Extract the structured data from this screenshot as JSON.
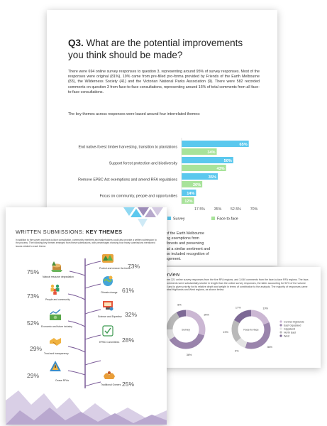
{
  "q3": {
    "heading_num": "Q3.",
    "heading_text": " What are the potential improvements you think should be made?",
    "para1": "There were 694 online survey responses to question 3, representing around 95% of survey responses. Most of the responses were original (81%), 19% came from pre-filled pro-forma provided by Friends of the Earth Melbourne (83), the Wilderness Society (41) and the Victorian National Parks Association (9). There were 582 recorded comments on question 3 from face-to-face consultations, representing around 16% of total comments from all face-to-face consultations.",
    "para2": "The key themes across responses were based around four interrelated themes:",
    "behind_text": [
      "ess Society and Friends of the Earth Melbourne",
      "er harvesting and removing exemptions from",
      "on enabling multiple-use forests and preserving",
      "change impacts. VNPA had a similar sentiment and",
      "ation based only. They also included recognition of",
      "joint ownership and management."
    ]
  },
  "chart_data": {
    "type": "bar",
    "categories": [
      "End native-forest timber harvesting, transition to plantations",
      "Support forest protection and biodiversity",
      "Remove EPBC Act exemptions and amend RFA regulations",
      "Focus on community, people and opportunities"
    ],
    "series": [
      {
        "name": "Survey",
        "values": [
          65,
          50,
          35,
          14
        ]
      },
      {
        "name": "Face-to-face",
        "values": [
          34,
          43,
          20,
          12
        ]
      }
    ],
    "value_labels": {
      "Survey": [
        "65%",
        "50%",
        "35%",
        "14%"
      ],
      "Face-to-face": [
        "34%",
        "43%",
        "20%",
        "12%"
      ]
    },
    "xticks": [
      "17.5%",
      "35%",
      "52.5%",
      "70%"
    ],
    "xlim": [
      0,
      70
    ],
    "legend_position": "bottom",
    "colors": {
      "Survey": "#5bc8ee",
      "Face-to-face": "#a8e39a"
    }
  },
  "written": {
    "title_regular": "WRITTEN SUBMISSIONS: ",
    "title_bold": "KEY THEMES",
    "intro": "In addition to the survey and face-to-face consultation, community members and stakeholders could also provide a written submission to the process. The following key themes emerged from these submissions, with percentages showing how many submissions mentioned issues related to each theme:",
    "left": [
      {
        "pct": "75%",
        "label": "Natural resource degradation",
        "icon": "tree-stump-icon"
      },
      {
        "pct": "73%",
        "label": "People and community",
        "icon": "people-icon"
      },
      {
        "pct": "52%",
        "label": "Economic and future industry",
        "icon": "money-icon"
      },
      {
        "pct": "29%",
        "label": "Trust and transparency",
        "icon": "handshake-icon"
      },
      {
        "pct": "29%",
        "label": "Cease RFAs",
        "icon": "warning-icon"
      }
    ],
    "right": [
      {
        "pct": "73%",
        "label": "Protect and restore the forest",
        "icon": "forest-icon"
      },
      {
        "pct": "61%",
        "label": "Climate change",
        "icon": "climate-icon"
      },
      {
        "pct": "32%",
        "label": "Science and Expertise",
        "icon": "science-icon"
      },
      {
        "pct": "28%",
        "label": "EPBC Committees",
        "icon": "committee-icon"
      },
      {
        "pct": "25%",
        "label": "Traditional Owners",
        "icon": "hands-icon"
      }
    ]
  },
  "overview": {
    "title": "Overview",
    "text": "There were 321 online survey responses from the five RFA regions, and 3,040 comments from the face-to-face RFA regions. The face-to-face comments were substantially shorter in length than the online survey responses, the latter accounting for 92% of the volume analysed and is given priority for its relative depth and weight in terms of contribution to the analysis. The majority of responses came from Central Highlands and West regions, as shown below.",
    "donut1": {
      "center": "Survey",
      "labels": [
        "30%",
        "36%",
        "9%",
        "17%",
        "8%"
      ],
      "values": [
        30,
        36,
        9,
        17,
        8
      ]
    },
    "donut2": {
      "center": "Face-to-face",
      "labels": [
        "19%",
        "36%",
        "9%",
        "19%",
        "17%"
      ],
      "values": [
        19,
        36,
        9,
        19,
        17
      ]
    },
    "legend": [
      "Central Highlands",
      "East Gippsland",
      "Gippsland",
      "North East",
      "West"
    ],
    "colors": [
      "#cbb7d3",
      "#9a84ac",
      "#e3e3e3",
      "#b9b9b9",
      "#7d6995"
    ]
  }
}
